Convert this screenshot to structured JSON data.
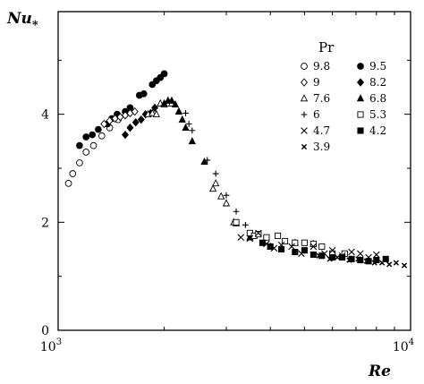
{
  "chart_data": {
    "type": "scatter",
    "xlabel": "Re",
    "ylabel": "Nu",
    "ylabel_sub": "*",
    "x_scale": "log",
    "xlim": [
      1000,
      10000
    ],
    "ylim": [
      0,
      5.9
    ],
    "x_ticks": [
      1000,
      10000
    ],
    "x_tick_labels": [
      {
        "base": "10",
        "exp": "3"
      },
      {
        "base": "10",
        "exp": "4"
      }
    ],
    "y_ticks": [
      0,
      2,
      4
    ],
    "y_tick_labels": [
      "0",
      "2",
      "4"
    ],
    "grid": false,
    "legend_title": "Pr",
    "legend_position": "top-right",
    "series": [
      {
        "name": "9.8",
        "marker": "circle-open",
        "x": [
          1070,
          1100,
          1150,
          1200,
          1260,
          1330,
          1400,
          1480
        ],
        "y": [
          2.72,
          2.9,
          3.1,
          3.3,
          3.42,
          3.6,
          3.75,
          3.9
        ]
      },
      {
        "name": "9.5",
        "marker": "circle-filled",
        "x": [
          1150,
          1200,
          1250,
          1300,
          1380,
          1420,
          1470,
          1550,
          1600,
          1700,
          1750,
          1850,
          1900,
          1950,
          2000
        ],
        "y": [
          3.42,
          3.58,
          3.62,
          3.72,
          3.82,
          3.92,
          4.0,
          4.05,
          4.12,
          4.35,
          4.38,
          4.55,
          4.62,
          4.68,
          4.75
        ]
      },
      {
        "name": "9",
        "marker": "diamond-open",
        "x": [
          1350,
          1400,
          1450,
          1500,
          1550,
          1600,
          1650
        ],
        "y": [
          3.82,
          3.88,
          3.92,
          3.95,
          3.98,
          4.02,
          4.05
        ]
      },
      {
        "name": "8.2",
        "marker": "diamond-filled",
        "x": [
          1550,
          1600,
          1660,
          1720,
          1770,
          1830,
          1880
        ],
        "y": [
          3.62,
          3.75,
          3.85,
          3.9,
          4.0,
          4.02,
          4.12
        ]
      },
      {
        "name": "7.6",
        "marker": "triangle-open",
        "x": [
          1800,
          1850,
          1900,
          1950,
          2000,
          2050,
          2100,
          2200,
          2750,
          2800,
          2900,
          3000,
          3150
        ],
        "y": [
          4.0,
          4.02,
          4.0,
          4.2,
          4.18,
          4.25,
          4.2,
          4.05,
          2.62,
          2.72,
          2.48,
          2.35,
          2.0
        ]
      },
      {
        "name": "6.8",
        "marker": "triangle-filled",
        "x": [
          2000,
          2050,
          2100,
          2150,
          2200,
          2250,
          2300,
          2400,
          2600,
          3200,
          3500,
          4000,
          4700,
          5300
        ],
        "y": [
          4.2,
          4.25,
          4.25,
          4.18,
          4.05,
          3.9,
          3.75,
          3.5,
          3.12,
          1.98,
          1.72,
          1.55,
          1.62,
          1.6
        ]
      },
      {
        "name": "6",
        "marker": "plus",
        "x": [
          2300,
          2350,
          2400,
          2650,
          2800,
          3000,
          3200,
          3400
        ],
        "y": [
          4.02,
          3.82,
          3.7,
          3.15,
          2.9,
          2.5,
          2.2,
          1.95
        ]
      },
      {
        "name": "5.3",
        "marker": "square-open",
        "x": [
          3200,
          3500,
          3600,
          3700,
          3900,
          4200,
          4400,
          4700,
          5000,
          5300,
          5600,
          6000,
          6500
        ],
        "y": [
          2.0,
          1.8,
          1.75,
          1.78,
          1.72,
          1.75,
          1.65,
          1.62,
          1.62,
          1.6,
          1.55,
          1.42,
          1.42
        ]
      },
      {
        "name": "4.7",
        "marker": "x",
        "x": [
          3300,
          3500,
          3700,
          3900,
          4100,
          4300,
          4600,
          4900,
          5300,
          5700,
          6000,
          6400,
          6800,
          7200,
          7600,
          8000
        ],
        "y": [
          1.72,
          1.7,
          1.8,
          1.6,
          1.52,
          1.58,
          1.55,
          1.42,
          1.55,
          1.42,
          1.48,
          1.38,
          1.45,
          1.42,
          1.35,
          1.4
        ]
      },
      {
        "name": "4.2",
        "marker": "square-filled",
        "x": [
          3800,
          4000,
          4300,
          4700,
          5000,
          5300,
          5600,
          6000,
          6400,
          6800,
          7200,
          7600,
          8000,
          8500
        ],
        "y": [
          1.62,
          1.55,
          1.5,
          1.45,
          1.48,
          1.4,
          1.38,
          1.35,
          1.35,
          1.32,
          1.3,
          1.28,
          1.3,
          1.32
        ]
      },
      {
        "name": "3.9",
        "marker": "cross",
        "x": [
          5500,
          5900,
          6200,
          6700,
          7100,
          7500,
          7900,
          8300,
          8700,
          9100,
          9600
        ],
        "y": [
          1.38,
          1.32,
          1.35,
          1.3,
          1.32,
          1.28,
          1.25,
          1.25,
          1.22,
          1.25,
          1.2
        ]
      }
    ]
  }
}
